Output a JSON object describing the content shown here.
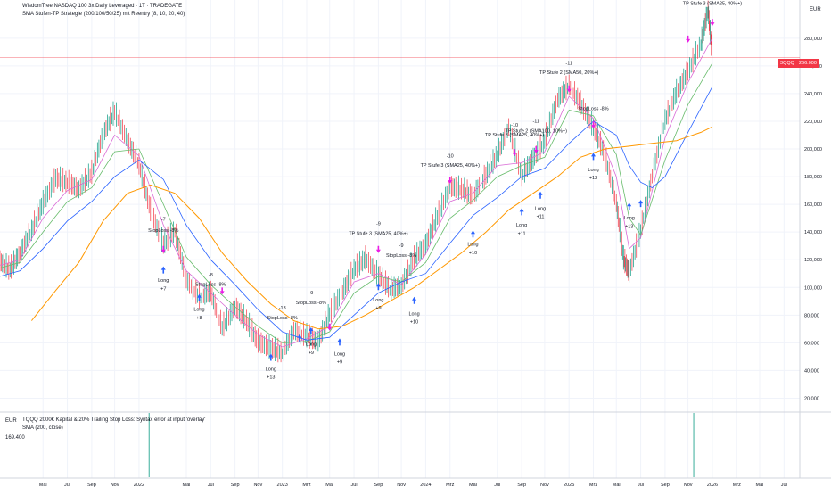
{
  "header": {
    "title": "WisdomTree NASDAQ 100 3x Daily Leveraged · 1T · TRADEGATE",
    "subtitle": "SMA Stufen-TP Strategie (200/100/50/25) mit Reentry (8, 10, 20, 40)",
    "currency": "EUR"
  },
  "price_tag": {
    "symbol": "3QQQ",
    "value": "266.000",
    "color": "#f23645"
  },
  "lower_pane": {
    "currency": "EUR",
    "line1": "TQQQ 2000€ Kapital & 20% Trailing Stop Loss: Syntax error at input 'overlay'",
    "line2": "SMA (200, close)",
    "value": "169.400"
  },
  "colors": {
    "up": "#089981",
    "down": "#f23645",
    "sma25": "#d96ad6",
    "sma50": "#66bb6a",
    "sma100": "#2962ff",
    "sma200": "#ff9800",
    "marker_magenta": "#e91ee5",
    "marker_blue": "#2962ff",
    "hline": "#f23645"
  },
  "chart_data": {
    "type": "line",
    "title": "WisdomTree NASDAQ 100 3x Daily Leveraged · 1T · TRADEGATE",
    "x_tick_labels": [
      "Mai",
      "Jul",
      "Sep",
      "Nov",
      "2022",
      "Mai",
      "Jul",
      "Sep",
      "Nov",
      "2023",
      "Mrz",
      "Mai",
      "Jul",
      "Sep",
      "Nov",
      "2024",
      "Mrz",
      "Mai",
      "Jul",
      "Sep",
      "Nov",
      "2025",
      "Mrz",
      "Mai",
      "Jul",
      "Sep",
      "Nov",
      "2026",
      "Mrz",
      "Mai",
      "Jul"
    ],
    "x_ticks": [
      1.33,
      1.5,
      1.67,
      1.83,
      2.0,
      2.33,
      2.5,
      2.67,
      2.83,
      3.0,
      3.17,
      3.33,
      3.5,
      3.67,
      3.83,
      4.0,
      4.17,
      4.33,
      4.5,
      4.67,
      4.83,
      5.0,
      5.17,
      5.33,
      5.5,
      5.67,
      5.83,
      6.0,
      6.17,
      6.33,
      6.5
    ],
    "y_ticks": [
      20,
      40,
      60,
      80,
      100,
      120,
      140,
      160,
      180,
      200,
      220,
      240,
      260,
      280
    ],
    "ylim": [
      10,
      305
    ],
    "xlim": [
      1.03,
      6.61
    ],
    "horizontal_line": 266,
    "series": [
      {
        "name": "3QQQ",
        "points": [
          [
            1.03,
            118
          ],
          [
            1.1,
            112
          ],
          [
            1.17,
            124
          ],
          [
            1.25,
            140
          ],
          [
            1.33,
            160
          ],
          [
            1.42,
            178
          ],
          [
            1.5,
            175
          ],
          [
            1.58,
            170
          ],
          [
            1.67,
            182
          ],
          [
            1.75,
            210
          ],
          [
            1.83,
            226
          ],
          [
            1.92,
            205
          ],
          [
            2.0,
            188
          ],
          [
            2.08,
            155
          ],
          [
            2.17,
            130
          ],
          [
            2.25,
            140
          ],
          [
            2.33,
            105
          ],
          [
            2.42,
            92
          ],
          [
            2.5,
            96
          ],
          [
            2.58,
            70
          ],
          [
            2.67,
            85
          ],
          [
            2.75,
            75
          ],
          [
            2.83,
            60
          ],
          [
            2.92,
            55
          ],
          [
            3.0,
            52
          ],
          [
            3.08,
            68
          ],
          [
            3.17,
            64
          ],
          [
            3.25,
            60
          ],
          [
            3.33,
            80
          ],
          [
            3.42,
            96
          ],
          [
            3.5,
            112
          ],
          [
            3.58,
            120
          ],
          [
            3.67,
            108
          ],
          [
            3.75,
            98
          ],
          [
            3.83,
            100
          ],
          [
            3.92,
            120
          ],
          [
            4.0,
            130
          ],
          [
            4.08,
            150
          ],
          [
            4.17,
            172
          ],
          [
            4.25,
            170
          ],
          [
            4.33,
            165
          ],
          [
            4.42,
            180
          ],
          [
            4.5,
            195
          ],
          [
            4.58,
            215
          ],
          [
            4.67,
            180
          ],
          [
            4.75,
            192
          ],
          [
            4.83,
            205
          ],
          [
            4.92,
            235
          ],
          [
            5.0,
            245
          ],
          [
            5.08,
            232
          ],
          [
            5.17,
            215
          ],
          [
            5.25,
            195
          ],
          [
            5.33,
            160
          ],
          [
            5.38,
            120
          ],
          [
            5.42,
            110
          ],
          [
            5.5,
            140
          ],
          [
            5.58,
            180
          ],
          [
            5.67,
            220
          ],
          [
            5.75,
            240
          ],
          [
            5.83,
            255
          ],
          [
            5.92,
            275
          ],
          [
            5.97,
            300
          ],
          [
            6.0,
            266
          ]
        ]
      },
      {
        "name": "SMA 25",
        "points": [
          [
            1.03,
            116
          ],
          [
            1.17,
            120
          ],
          [
            1.33,
            150
          ],
          [
            1.5,
            170
          ],
          [
            1.67,
            178
          ],
          [
            1.83,
            210
          ],
          [
            2.0,
            195
          ],
          [
            2.17,
            145
          ],
          [
            2.33,
            112
          ],
          [
            2.5,
            96
          ],
          [
            2.67,
            80
          ],
          [
            2.83,
            66
          ],
          [
            3.0,
            57
          ],
          [
            3.17,
            63
          ],
          [
            3.33,
            72
          ],
          [
            3.5,
            104
          ],
          [
            3.67,
            110
          ],
          [
            3.83,
            102
          ],
          [
            4.0,
            124
          ],
          [
            4.17,
            162
          ],
          [
            4.33,
            168
          ],
          [
            4.5,
            188
          ],
          [
            4.67,
            190
          ],
          [
            4.83,
            198
          ],
          [
            5.0,
            238
          ],
          [
            5.17,
            222
          ],
          [
            5.33,
            180
          ],
          [
            5.42,
            128
          ],
          [
            5.5,
            136
          ],
          [
            5.67,
            208
          ],
          [
            5.83,
            248
          ],
          [
            6.0,
            280
          ]
        ]
      },
      {
        "name": "SMA 50",
        "points": [
          [
            1.03,
            114
          ],
          [
            1.17,
            118
          ],
          [
            1.33,
            140
          ],
          [
            1.5,
            162
          ],
          [
            1.67,
            172
          ],
          [
            1.83,
            198
          ],
          [
            2.0,
            200
          ],
          [
            2.17,
            160
          ],
          [
            2.33,
            122
          ],
          [
            2.5,
            102
          ],
          [
            2.67,
            86
          ],
          [
            2.83,
            72
          ],
          [
            3.0,
            60
          ],
          [
            3.17,
            61
          ],
          [
            3.33,
            68
          ],
          [
            3.5,
            96
          ],
          [
            3.67,
            108
          ],
          [
            3.83,
            104
          ],
          [
            4.0,
            118
          ],
          [
            4.17,
            150
          ],
          [
            4.33,
            163
          ],
          [
            4.5,
            180
          ],
          [
            4.67,
            188
          ],
          [
            4.83,
            194
          ],
          [
            5.0,
            228
          ],
          [
            5.17,
            224
          ],
          [
            5.33,
            196
          ],
          [
            5.42,
            150
          ],
          [
            5.5,
            138
          ],
          [
            5.67,
            192
          ],
          [
            5.83,
            232
          ],
          [
            6.0,
            262
          ]
        ]
      },
      {
        "name": "SMA 100",
        "points": [
          [
            1.03,
            108
          ],
          [
            1.17,
            112
          ],
          [
            1.33,
            128
          ],
          [
            1.5,
            148
          ],
          [
            1.67,
            162
          ],
          [
            1.83,
            180
          ],
          [
            2.0,
            192
          ],
          [
            2.17,
            178
          ],
          [
            2.33,
            145
          ],
          [
            2.5,
            120
          ],
          [
            2.67,
            102
          ],
          [
            2.83,
            84
          ],
          [
            3.0,
            68
          ],
          [
            3.17,
            62
          ],
          [
            3.33,
            64
          ],
          [
            3.5,
            80
          ],
          [
            3.67,
            96
          ],
          [
            3.83,
            104
          ],
          [
            4.0,
            110
          ],
          [
            4.17,
            132
          ],
          [
            4.33,
            152
          ],
          [
            4.5,
            165
          ],
          [
            4.67,
            180
          ],
          [
            4.83,
            186
          ],
          [
            5.0,
            204
          ],
          [
            5.17,
            220
          ],
          [
            5.33,
            210
          ],
          [
            5.42,
            188
          ],
          [
            5.5,
            176
          ],
          [
            5.58,
            172
          ],
          [
            5.67,
            180
          ],
          [
            5.83,
            212
          ],
          [
            6.0,
            245
          ]
        ]
      },
      {
        "name": "SMA 200",
        "points": [
          [
            1.25,
            76
          ],
          [
            1.42,
            98
          ],
          [
            1.58,
            118
          ],
          [
            1.75,
            148
          ],
          [
            1.92,
            168
          ],
          [
            2.08,
            174
          ],
          [
            2.25,
            168
          ],
          [
            2.42,
            150
          ],
          [
            2.58,
            125
          ],
          [
            2.75,
            105
          ],
          [
            2.92,
            88
          ],
          [
            3.08,
            76
          ],
          [
            3.25,
            70
          ],
          [
            3.42,
            72
          ],
          [
            3.58,
            80
          ],
          [
            3.75,
            90
          ],
          [
            3.92,
            100
          ],
          [
            4.08,
            112
          ],
          [
            4.25,
            125
          ],
          [
            4.42,
            140
          ],
          [
            4.58,
            156
          ],
          [
            4.75,
            168
          ],
          [
            4.92,
            180
          ],
          [
            5.08,
            194
          ],
          [
            5.25,
            200
          ],
          [
            5.42,
            202
          ],
          [
            5.58,
            204
          ],
          [
            5.75,
            206
          ],
          [
            5.92,
            212
          ],
          [
            6.0,
            216
          ]
        ]
      }
    ],
    "annotations": [
      {
        "x": 2.17,
        "y": 148,
        "text": "-7",
        "color": "#131722"
      },
      {
        "x": 2.17,
        "y": 140,
        "text": "StopLoss -8%",
        "color": "#131722"
      },
      {
        "x": 2.17,
        "y": 104,
        "text": "Long",
        "color": "#131722"
      },
      {
        "x": 2.17,
        "y": 98,
        "text": "+7",
        "color": "#131722"
      },
      {
        "x": 2.5,
        "y": 108,
        "text": "-8",
        "color": "#131722"
      },
      {
        "x": 2.5,
        "y": 101,
        "text": "StopLoss -8%",
        "color": "#131722"
      },
      {
        "x": 2.42,
        "y": 83,
        "text": "Long",
        "color": "#131722"
      },
      {
        "x": 2.42,
        "y": 77,
        "text": "+8",
        "color": "#131722"
      },
      {
        "x": 3.0,
        "y": 84,
        "text": "-13",
        "color": "#131722"
      },
      {
        "x": 3.0,
        "y": 77,
        "text": "StopLoss -8%",
        "color": "#131722"
      },
      {
        "x": 2.92,
        "y": 40,
        "text": "Long",
        "color": "#131722"
      },
      {
        "x": 2.92,
        "y": 34,
        "text": "+13",
        "color": "#131722"
      },
      {
        "x": 3.2,
        "y": 95,
        "text": "-9",
        "color": "#131722"
      },
      {
        "x": 3.2,
        "y": 88,
        "text": "StopLoss -8%",
        "color": "#131722"
      },
      {
        "x": 3.2,
        "y": 58,
        "text": "Long",
        "color": "#131722"
      },
      {
        "x": 3.2,
        "y": 52,
        "text": "+9",
        "color": "#131722"
      },
      {
        "x": 3.4,
        "y": 51,
        "text": "Long",
        "color": "#131722"
      },
      {
        "x": 3.4,
        "y": 45,
        "text": "+9",
        "color": "#131722"
      },
      {
        "x": 3.67,
        "y": 145,
        "text": "-9",
        "color": "#131722"
      },
      {
        "x": 3.67,
        "y": 138,
        "text": "TP Stufe 3 (SMA25, 40%+)",
        "color": "#131722"
      },
      {
        "x": 3.83,
        "y": 129,
        "text": "-9",
        "color": "#131722"
      },
      {
        "x": 3.83,
        "y": 122,
        "text": "StopLoss -8%",
        "color": "#131722"
      },
      {
        "x": 3.67,
        "y": 90,
        "text": "Long",
        "color": "#131722"
      },
      {
        "x": 3.67,
        "y": 84,
        "text": "+9",
        "color": "#131722"
      },
      {
        "x": 3.92,
        "y": 80,
        "text": "Long",
        "color": "#131722"
      },
      {
        "x": 3.92,
        "y": 74,
        "text": "+10",
        "color": "#131722"
      },
      {
        "x": 4.17,
        "y": 194,
        "text": "-10",
        "color": "#131722"
      },
      {
        "x": 4.17,
        "y": 187,
        "text": "TP Stufe 3 (SMA25, 40%+)",
        "color": "#131722"
      },
      {
        "x": 4.33,
        "y": 130,
        "text": "Long",
        "color": "#131722"
      },
      {
        "x": 4.33,
        "y": 124,
        "text": "+10",
        "color": "#131722"
      },
      {
        "x": 4.62,
        "y": 216,
        "text": "-10",
        "color": "#131722"
      },
      {
        "x": 4.62,
        "y": 209,
        "text": "TP Stufe 3 (SMA25, 40%+)",
        "color": "#131722"
      },
      {
        "x": 4.77,
        "y": 219,
        "text": "-11",
        "color": "#131722"
      },
      {
        "x": 4.77,
        "y": 212,
        "text": "TP Stufe 2 (SMA100, 10%+)",
        "color": "#131722"
      },
      {
        "x": 4.67,
        "y": 144,
        "text": "Long",
        "color": "#131722"
      },
      {
        "x": 4.67,
        "y": 138,
        "text": "+11",
        "color": "#131722"
      },
      {
        "x": 4.8,
        "y": 156,
        "text": "Long",
        "color": "#131722"
      },
      {
        "x": 4.8,
        "y": 150,
        "text": "+11",
        "color": "#131722"
      },
      {
        "x": 5.0,
        "y": 261,
        "text": "-11",
        "color": "#131722"
      },
      {
        "x": 5.0,
        "y": 254,
        "text": "TP Stufe 2 (SMA50, 20%+)",
        "color": "#131722"
      },
      {
        "x": 5.17,
        "y": 228,
        "text": "StopLoss -8%",
        "color": "#131722"
      },
      {
        "x": 5.17,
        "y": 184,
        "text": "Long",
        "color": "#131722"
      },
      {
        "x": 5.17,
        "y": 178,
        "text": "+12",
        "color": "#131722"
      },
      {
        "x": 5.42,
        "y": 149,
        "text": "Long",
        "color": "#131722"
      },
      {
        "x": 5.42,
        "y": 143,
        "text": "+13",
        "color": "#131722"
      },
      {
        "x": 6.0,
        "y": 304,
        "text": "TP Stufe 3 (SMA25, 40%+)",
        "color": "#131722"
      }
    ],
    "markers_up": [
      [
        2.17,
        112
      ],
      [
        2.42,
        92
      ],
      [
        2.92,
        49
      ],
      [
        3.12,
        63
      ],
      [
        3.2,
        68
      ],
      [
        3.4,
        60
      ],
      [
        3.67,
        100
      ],
      [
        3.92,
        90
      ],
      [
        4.33,
        138
      ],
      [
        4.67,
        154
      ],
      [
        4.8,
        166
      ],
      [
        5.17,
        194
      ],
      [
        5.42,
        158
      ],
      [
        5.5,
        160
      ]
    ],
    "markers_down": [
      [
        2.17,
        128
      ],
      [
        2.58,
        98
      ],
      [
        3.33,
        72
      ],
      [
        3.67,
        128
      ],
      [
        4.17,
        178
      ],
      [
        4.62,
        198
      ],
      [
        4.77,
        200
      ],
      [
        5.0,
        244
      ],
      [
        5.17,
        218
      ],
      [
        5.83,
        280
      ],
      [
        6.0,
        292
      ]
    ],
    "grid": true,
    "legend": "none"
  }
}
